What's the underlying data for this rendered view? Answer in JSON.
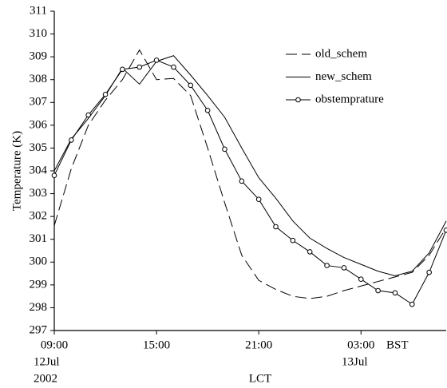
{
  "chart_data": {
    "type": "line",
    "y_label": "Temperature (K)",
    "x_label": "LCT",
    "x": [
      9,
      10,
      11,
      12,
      13,
      14,
      15,
      16,
      17,
      18,
      19,
      20,
      21,
      22,
      23,
      24,
      25,
      26,
      27,
      28,
      29,
      30,
      31,
      32
    ],
    "series": [
      {
        "name": "old_schem",
        "color": "#000000",
        "line_style": "dashed",
        "values": [
          301.6,
          304.1,
          306.0,
          307.1,
          308.0,
          309.3,
          308.0,
          308.05,
          307.3,
          305.0,
          302.6,
          300.3,
          299.2,
          298.8,
          298.5,
          298.4,
          298.5,
          298.75,
          298.95,
          299.15,
          299.35,
          299.55,
          300.3,
          301.5
        ]
      },
      {
        "name": "new_schem",
        "color": "#000000",
        "line_style": "solid",
        "values": [
          304.0,
          305.4,
          306.3,
          307.3,
          308.5,
          307.8,
          308.8,
          309.05,
          308.2,
          307.3,
          306.35,
          305.0,
          303.7,
          302.8,
          301.8,
          301.05,
          300.6,
          300.2,
          299.9,
          299.6,
          299.4,
          299.6,
          300.4,
          301.8
        ]
      },
      {
        "name": "obstemprature",
        "color": "#000000",
        "line_style": "solid",
        "marker": "circle",
        "values": [
          303.8,
          305.35,
          306.45,
          307.35,
          308.45,
          308.55,
          308.85,
          308.55,
          307.75,
          306.65,
          304.95,
          303.55,
          302.75,
          301.55,
          300.95,
          300.45,
          299.85,
          299.75,
          299.25,
          298.75,
          298.65,
          298.15,
          299.55,
          301.4
        ]
      }
    ],
    "xlim": [
      9,
      32
    ],
    "xticks": [
      {
        "value": 9,
        "label": "09:00"
      },
      {
        "value": 15,
        "label": "15:00"
      },
      {
        "value": 21,
        "label": "21:00"
      },
      {
        "value": 27,
        "label": "03:00"
      }
    ],
    "ylim": [
      297,
      311
    ],
    "yticks": [
      297,
      298,
      299,
      300,
      301,
      302,
      303,
      304,
      305,
      306,
      307,
      308,
      309,
      310,
      311
    ],
    "annotations": [
      "BST",
      "12Jul",
      "2002",
      "13Jul"
    ],
    "legend": "upper right"
  }
}
